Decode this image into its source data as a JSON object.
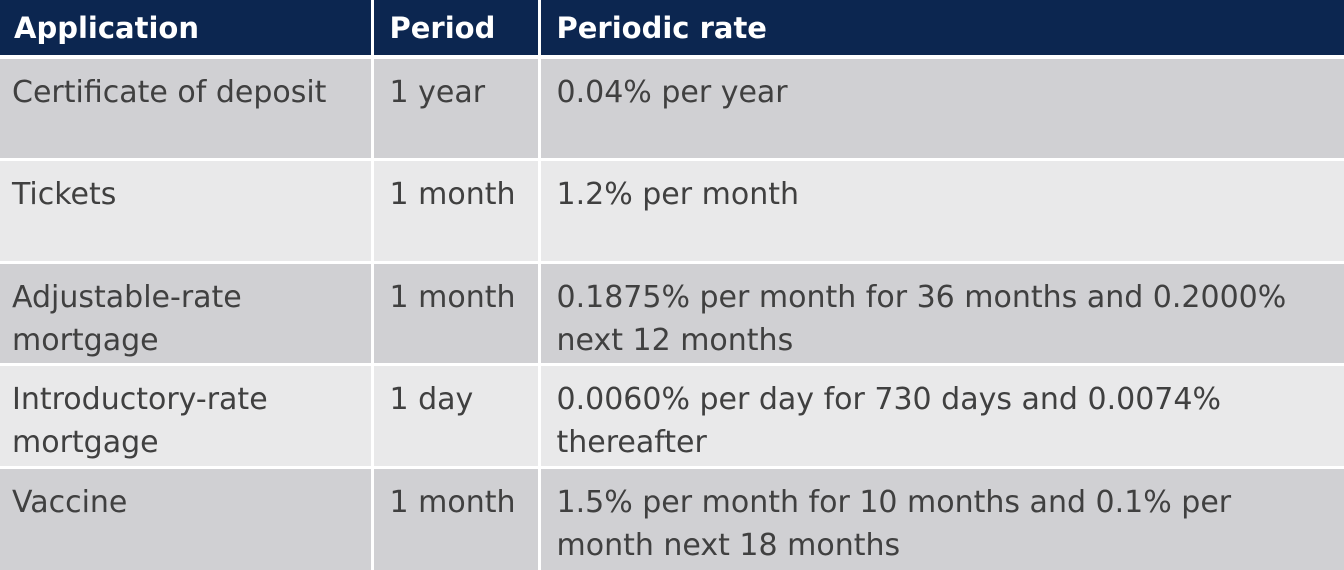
{
  "table": {
    "headers": [
      "Application",
      "Period",
      "Periodic rate"
    ],
    "rows": [
      [
        "Certificate of deposit",
        "1 year",
        "0.04% per year"
      ],
      [
        "Tickets",
        "1 month",
        "1.2% per month"
      ],
      [
        "Adjustable-rate mortgage",
        "1 month",
        "0.1875% per month for 36 months and 0.2000% next 12 months"
      ],
      [
        "Introductory-rate mortgage",
        "1 day",
        "0.0060% per day for 730 days and 0.0074% thereafter"
      ],
      [
        "Vaccine",
        "1 month",
        "1.5% per month for 10 months and 0.1% per month next 18 months"
      ]
    ]
  },
  "colors": {
    "header_bg": "#0c2650",
    "header_text": "#ffffff",
    "row_odd_bg": "#d0d0d3",
    "row_even_bg": "#e9e9ea",
    "body_text": "#404040"
  }
}
